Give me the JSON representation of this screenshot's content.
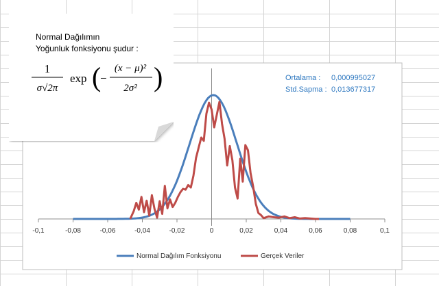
{
  "note": {
    "line1": "Normal Dağılımın",
    "line2": "Yoğunluk fonksiyonu şudur :",
    "formula_coefficient_numerator": "1",
    "formula_coefficient_denominator": "σ√2π",
    "formula_function": "exp",
    "formula_exponent_numerator": "(x − μ)²",
    "formula_exponent_denominator": "2σ²"
  },
  "stats": {
    "mean_label": "Ortalama :",
    "mean_value": "0,000995027",
    "std_label": "Std.Sapma :",
    "std_value": "0,013677317"
  },
  "colors": {
    "normal": "#4a7ebb",
    "real": "#be4b48",
    "stats_text": "#2e78c0"
  },
  "chart_data": {
    "type": "line",
    "xlim": [
      -0.1,
      0.1
    ],
    "x_ticks": [
      "-0,1",
      "-0,08",
      "-0,06",
      "-0,04",
      "-0,02",
      "0",
      "0,02",
      "0,04",
      "0,06",
      "0,08",
      "0,1"
    ],
    "x_tick_values": [
      -0.1,
      -0.08,
      -0.06,
      -0.04,
      -0.02,
      0,
      0.02,
      0.04,
      0.06,
      0.08,
      0.1
    ],
    "y_gridlines": false,
    "legend_position": "bottom",
    "series": [
      {
        "name": "Normal Dağılım Fonksiyonu",
        "color": "#4a7ebb",
        "mean": 0.000995027,
        "std": 0.013677317,
        "x_range": [
          -0.08,
          0.08
        ],
        "y_peak": 29.2
      },
      {
        "name": "Gerçek Veriler",
        "color": "#be4b48",
        "points": [
          [
            -0.047,
            0.0
          ],
          [
            -0.045,
            1.8
          ],
          [
            -0.0435,
            3.8
          ],
          [
            -0.042,
            2.2
          ],
          [
            -0.0405,
            5.2
          ],
          [
            -0.039,
            1.6
          ],
          [
            -0.0375,
            4.3
          ],
          [
            -0.036,
            0.8
          ],
          [
            -0.0345,
            5.6
          ],
          [
            -0.033,
            2.4
          ],
          [
            -0.0315,
            0.3
          ],
          [
            -0.03,
            4.2
          ],
          [
            -0.0285,
            1.2
          ],
          [
            -0.027,
            7.8
          ],
          [
            -0.0255,
            2.5
          ],
          [
            -0.024,
            4.6
          ],
          [
            -0.0225,
            2.8
          ],
          [
            -0.021,
            3.8
          ],
          [
            -0.0195,
            5.2
          ],
          [
            -0.018,
            6.3
          ],
          [
            -0.0165,
            7.1
          ],
          [
            -0.015,
            6.9
          ],
          [
            -0.0135,
            8.0
          ],
          [
            -0.012,
            7.4
          ],
          [
            -0.0105,
            10.2
          ],
          [
            -0.009,
            14.4
          ],
          [
            -0.0075,
            16.8
          ],
          [
            -0.006,
            19.2
          ],
          [
            -0.0045,
            18.4
          ],
          [
            -0.003,
            24.8
          ],
          [
            -0.0015,
            27.4
          ],
          [
            0.0,
            25.8
          ],
          [
            0.0015,
            21.6
          ],
          [
            0.003,
            24.6
          ],
          [
            0.0045,
            27.6
          ],
          [
            0.006,
            22.4
          ],
          [
            0.0075,
            18.9
          ],
          [
            0.009,
            12.6
          ],
          [
            0.0105,
            17.2
          ],
          [
            0.012,
            13.8
          ],
          [
            0.0135,
            7.4
          ],
          [
            0.015,
            4.8
          ],
          [
            0.0165,
            14.2
          ],
          [
            0.018,
            8.8
          ],
          [
            0.0195,
            17.4
          ],
          [
            0.021,
            16.2
          ],
          [
            0.0225,
            10.8
          ],
          [
            0.024,
            7.6
          ],
          [
            0.0255,
            3.6
          ],
          [
            0.027,
            1.4
          ],
          [
            0.0285,
            0.9
          ],
          [
            0.03,
            0.2
          ],
          [
            0.033,
            0.6
          ],
          [
            0.036,
            0.4
          ],
          [
            0.039,
            0.3
          ],
          [
            0.042,
            0.6
          ],
          [
            0.045,
            0.2
          ],
          [
            0.048,
            0.4
          ],
          [
            0.051,
            0.1
          ],
          [
            0.054,
            0.2
          ],
          [
            0.057,
            0.1
          ],
          [
            0.06,
            0.0
          ],
          [
            0.062,
            0.0
          ]
        ]
      }
    ]
  }
}
